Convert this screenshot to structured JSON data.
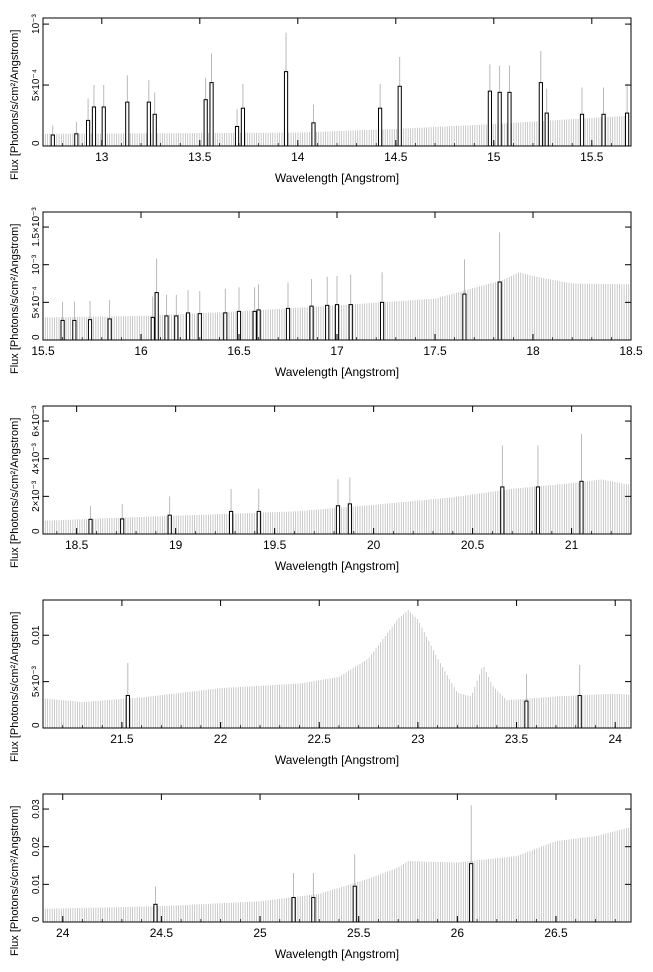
{
  "chart_data": [
    {
      "type": "bar",
      "xlabel": "Wavelength [Angstrom]",
      "ylabel": "Flux [Photons/s/cm²/Angstrom]",
      "xlim": [
        12.7,
        15.7
      ],
      "ylim": [
        0,
        0.00105
      ],
      "x_ticks": [
        {
          "value": 13,
          "label": "13"
        },
        {
          "value": 13.5,
          "label": "13.5"
        },
        {
          "value": 14,
          "label": "14"
        },
        {
          "value": 14.5,
          "label": "14.5"
        },
        {
          "value": 15,
          "label": "15"
        },
        {
          "value": 15.5,
          "label": "15.5"
        }
      ],
      "y_ticks": [
        {
          "value": 0,
          "label": "0"
        },
        {
          "value": 0.0005,
          "label": "5×10⁻⁴"
        },
        {
          "value": 0.001,
          "label": "10⁻³"
        }
      ],
      "continuum": [
        [
          12.7,
          0.0001
        ],
        [
          14.0,
          0.00011
        ],
        [
          14.5,
          0.00014
        ],
        [
          15.0,
          0.00018
        ],
        [
          15.7,
          0.00025
        ]
      ],
      "bins": [
        {
          "x": 12.75,
          "y": 9e-05,
          "err": 8e-05
        },
        {
          "x": 12.87,
          "y": 0.0001,
          "err": 0.0001
        },
        {
          "x": 12.93,
          "y": 0.00021,
          "err": 0.00018
        },
        {
          "x": 12.96,
          "y": 0.00032,
          "err": 0.00018
        },
        {
          "x": 13.01,
          "y": 0.00032,
          "err": 0.00018
        },
        {
          "x": 13.13,
          "y": 0.00036,
          "err": 0.00022
        },
        {
          "x": 13.24,
          "y": 0.00036,
          "err": 0.00018
        },
        {
          "x": 13.27,
          "y": 0.00026,
          "err": 0.00018
        },
        {
          "x": 13.53,
          "y": 0.00038,
          "err": 0.00018
        },
        {
          "x": 13.56,
          "y": 0.00052,
          "err": 0.00024
        },
        {
          "x": 13.69,
          "y": 0.00016,
          "err": 0.00014
        },
        {
          "x": 13.72,
          "y": 0.00031,
          "err": 0.0002
        },
        {
          "x": 13.94,
          "y": 0.00061,
          "err": 0.00032
        },
        {
          "x": 14.08,
          "y": 0.00019,
          "err": 0.00015
        },
        {
          "x": 14.42,
          "y": 0.00031,
          "err": 0.0002
        },
        {
          "x": 14.52,
          "y": 0.00049,
          "err": 0.00024
        },
        {
          "x": 14.98,
          "y": 0.00045,
          "err": 0.00022
        },
        {
          "x": 15.03,
          "y": 0.00044,
          "err": 0.00022
        },
        {
          "x": 15.08,
          "y": 0.00044,
          "err": 0.00022
        },
        {
          "x": 15.24,
          "y": 0.00052,
          "err": 0.00026
        },
        {
          "x": 15.27,
          "y": 0.00027,
          "err": 0.0002
        },
        {
          "x": 15.45,
          "y": 0.00026,
          "err": 0.00022
        },
        {
          "x": 15.56,
          "y": 0.00026,
          "err": 0.00022
        },
        {
          "x": 15.68,
          "y": 0.00027,
          "err": 0.00024
        }
      ]
    },
    {
      "type": "bar",
      "xlabel": "Wavelength [Angstrom]",
      "ylabel": "Flux [Photons/s/cm²/Angstrom]",
      "xlim": [
        15.5,
        18.5
      ],
      "ylim": [
        0,
        0.0017
      ],
      "x_ticks": [
        {
          "value": 15.5,
          "label": "15.5"
        },
        {
          "value": 16,
          "label": "16"
        },
        {
          "value": 16.5,
          "label": "16.5"
        },
        {
          "value": 17,
          "label": "17"
        },
        {
          "value": 17.5,
          "label": "17.5"
        },
        {
          "value": 18,
          "label": "18"
        },
        {
          "value": 18.5,
          "label": "18.5"
        }
      ],
      "y_ticks": [
        {
          "value": 0,
          "label": "0"
        },
        {
          "value": 0.0005,
          "label": "5×10⁻⁴"
        },
        {
          "value": 0.001,
          "label": "10⁻³"
        },
        {
          "value": 0.0015,
          "label": "1.5×10⁻³"
        }
      ],
      "continuum": [
        [
          15.5,
          0.0003
        ],
        [
          16.0,
          0.00032
        ],
        [
          16.5,
          0.00038
        ],
        [
          17.0,
          0.00046
        ],
        [
          17.5,
          0.00055
        ],
        [
          17.85,
          0.0008
        ],
        [
          17.93,
          0.0009
        ],
        [
          18.0,
          0.00085
        ],
        [
          18.2,
          0.00075
        ],
        [
          18.5,
          0.00074
        ]
      ],
      "bins": [
        {
          "x": 15.6,
          "y": 0.00026,
          "err": 0.00025
        },
        {
          "x": 15.66,
          "y": 0.00026,
          "err": 0.00025
        },
        {
          "x": 15.74,
          "y": 0.00027,
          "err": 0.00025
        },
        {
          "x": 15.84,
          "y": 0.00028,
          "err": 0.00025
        },
        {
          "x": 16.06,
          "y": 0.0003,
          "err": 0.00028
        },
        {
          "x": 16.08,
          "y": 0.00063,
          "err": 0.00045
        },
        {
          "x": 16.13,
          "y": 0.00032,
          "err": 0.00028
        },
        {
          "x": 16.18,
          "y": 0.00032,
          "err": 0.00028
        },
        {
          "x": 16.24,
          "y": 0.00036,
          "err": 0.0003
        },
        {
          "x": 16.3,
          "y": 0.00035,
          "err": 0.0003
        },
        {
          "x": 16.43,
          "y": 0.00036,
          "err": 0.00032
        },
        {
          "x": 16.5,
          "y": 0.00038,
          "err": 0.00032
        },
        {
          "x": 16.58,
          "y": 0.00038,
          "err": 0.00032
        },
        {
          "x": 16.6,
          "y": 0.0004,
          "err": 0.00034
        },
        {
          "x": 16.75,
          "y": 0.00042,
          "err": 0.00034
        },
        {
          "x": 16.87,
          "y": 0.00045,
          "err": 0.00036
        },
        {
          "x": 16.95,
          "y": 0.00046,
          "err": 0.00038
        },
        {
          "x": 17.0,
          "y": 0.00047,
          "err": 0.00038
        },
        {
          "x": 17.07,
          "y": 0.00047,
          "err": 0.0004
        },
        {
          "x": 17.23,
          "y": 0.0005,
          "err": 0.0004
        },
        {
          "x": 17.65,
          "y": 0.00061,
          "err": 0.00046
        },
        {
          "x": 17.83,
          "y": 0.00077,
          "err": 0.00066
        }
      ]
    },
    {
      "type": "bar",
      "xlabel": "Wavelength [Angstrom]",
      "ylabel": "Flux [Photons/s/cm²/Angstrom]",
      "xlim": [
        18.33,
        21.3
      ],
      "ylim": [
        0,
        0.0068
      ],
      "x_ticks": [
        {
          "value": 18.5,
          "label": "18.5"
        },
        {
          "value": 19,
          "label": "19"
        },
        {
          "value": 19.5,
          "label": "19.5"
        },
        {
          "value": 20,
          "label": "20"
        },
        {
          "value": 20.5,
          "label": "20.5"
        },
        {
          "value": 21,
          "label": "21"
        }
      ],
      "y_ticks": [
        {
          "value": 0,
          "label": "0"
        },
        {
          "value": 0.002,
          "label": "2×10⁻³"
        },
        {
          "value": 0.004,
          "label": "4×10⁻³"
        },
        {
          "value": 0.006,
          "label": "6×10⁻³"
        }
      ],
      "continuum": [
        [
          18.33,
          0.0007
        ],
        [
          18.8,
          0.0009
        ],
        [
          19.2,
          0.00105
        ],
        [
          19.6,
          0.0012
        ],
        [
          20.0,
          0.00155
        ],
        [
          20.4,
          0.00195
        ],
        [
          20.7,
          0.0024
        ],
        [
          21.0,
          0.0027
        ],
        [
          21.15,
          0.0029
        ],
        [
          21.3,
          0.0026
        ]
      ],
      "bins": [
        {
          "x": 18.57,
          "y": 0.00078,
          "err": 0.0007
        },
        {
          "x": 18.73,
          "y": 0.0008,
          "err": 0.0008
        },
        {
          "x": 18.97,
          "y": 0.001,
          "err": 0.001
        },
        {
          "x": 19.28,
          "y": 0.0012,
          "err": 0.0012
        },
        {
          "x": 19.42,
          "y": 0.0012,
          "err": 0.0012
        },
        {
          "x": 19.82,
          "y": 0.0015,
          "err": 0.0014
        },
        {
          "x": 19.88,
          "y": 0.0016,
          "err": 0.0014
        },
        {
          "x": 20.65,
          "y": 0.0025,
          "err": 0.0022
        },
        {
          "x": 20.83,
          "y": 0.0025,
          "err": 0.0022
        },
        {
          "x": 21.05,
          "y": 0.0028,
          "err": 0.0025
        }
      ]
    },
    {
      "type": "bar",
      "xlabel": "Wavelength [Angstrom]",
      "ylabel": "Flux [Photons/s/cm²/Angstrom]",
      "xlim": [
        21.1,
        24.08
      ],
      "ylim": [
        0,
        0.0138
      ],
      "x_ticks": [
        {
          "value": 21.5,
          "label": "21.5"
        },
        {
          "value": 22,
          "label": "22"
        },
        {
          "value": 22.5,
          "label": "22.5"
        },
        {
          "value": 23,
          "label": "23"
        },
        {
          "value": 23.5,
          "label": "23.5"
        },
        {
          "value": 24,
          "label": "24"
        }
      ],
      "y_ticks": [
        {
          "value": 0,
          "label": "0"
        },
        {
          "value": 0.005,
          "label": "5×10⁻³"
        },
        {
          "value": 0.01,
          "label": "0.01"
        }
      ],
      "continuum": [
        [
          21.1,
          0.0032
        ],
        [
          21.3,
          0.0028
        ],
        [
          21.6,
          0.0033
        ],
        [
          22.0,
          0.0043
        ],
        [
          22.4,
          0.0048
        ],
        [
          22.6,
          0.0055
        ],
        [
          22.75,
          0.0075
        ],
        [
          22.9,
          0.0118
        ],
        [
          22.95,
          0.0127
        ],
        [
          23.0,
          0.0117
        ],
        [
          23.1,
          0.0075
        ],
        [
          23.2,
          0.0038
        ],
        [
          23.27,
          0.0034
        ],
        [
          23.33,
          0.0068
        ],
        [
          23.38,
          0.0045
        ],
        [
          23.45,
          0.003
        ],
        [
          23.7,
          0.0034
        ],
        [
          24.0,
          0.0037
        ],
        [
          24.08,
          0.0036
        ]
      ],
      "bins": [
        {
          "x": 21.53,
          "y": 0.0035,
          "err": 0.0035
        },
        {
          "x": 23.55,
          "y": 0.0029,
          "err": 0.0029
        },
        {
          "x": 23.82,
          "y": 0.0035,
          "err": 0.0033
        }
      ]
    },
    {
      "type": "bar",
      "xlabel": "Wavelength [Angstrom]",
      "ylabel": "Flux [Photons/s/cm²/Angstrom]",
      "xlim": [
        23.9,
        26.88
      ],
      "ylim": [
        0,
        0.034
      ],
      "x_ticks": [
        {
          "value": 24,
          "label": "24"
        },
        {
          "value": 24.5,
          "label": "24.5"
        },
        {
          "value": 25,
          "label": "25"
        },
        {
          "value": 25.5,
          "label": "25.5"
        },
        {
          "value": 26,
          "label": "26"
        },
        {
          "value": 26.5,
          "label": "26.5"
        }
      ],
      "y_ticks": [
        {
          "value": 0,
          "label": "0"
        },
        {
          "value": 0.01,
          "label": "0.01"
        },
        {
          "value": 0.02,
          "label": "0.02"
        },
        {
          "value": 0.03,
          "label": "0.03"
        }
      ],
      "continuum": [
        [
          23.9,
          0.0035
        ],
        [
          24.5,
          0.0042
        ],
        [
          25.0,
          0.0055
        ],
        [
          25.3,
          0.0075
        ],
        [
          25.55,
          0.0115
        ],
        [
          25.7,
          0.0145
        ],
        [
          25.75,
          0.0162
        ],
        [
          26.0,
          0.0158
        ],
        [
          26.3,
          0.0175
        ],
        [
          26.5,
          0.0215
        ],
        [
          26.7,
          0.0228
        ],
        [
          26.88,
          0.0252
        ]
      ],
      "bins": [
        {
          "x": 24.47,
          "y": 0.0047,
          "err": 0.0047
        },
        {
          "x": 25.17,
          "y": 0.0065,
          "err": 0.0065
        },
        {
          "x": 25.27,
          "y": 0.0065,
          "err": 0.0065
        },
        {
          "x": 25.48,
          "y": 0.0095,
          "err": 0.0085
        },
        {
          "x": 26.07,
          "y": 0.0155,
          "err": 0.0155
        }
      ]
    }
  ],
  "style": {
    "continuum_color": "#bdbdbd",
    "line_color": "#000000",
    "errorbar_color": "#a8a8a8",
    "frame_color": "#000000"
  }
}
